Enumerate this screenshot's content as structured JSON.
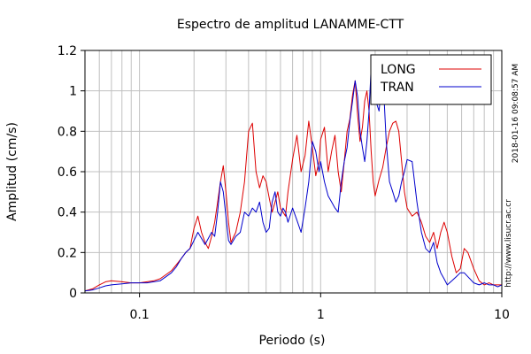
{
  "chart_data": {
    "type": "line",
    "title": "Espectro de amplitud LANAMME-CTT",
    "xlabel": "Periodo (s)",
    "ylabel": "Amplitud (cm/s)",
    "x_scale": "log",
    "xlim": [
      0.05,
      10
    ],
    "ylim": [
      0,
      1.2
    ],
    "x_ticks": [
      0.1,
      1,
      10
    ],
    "x_tick_labels": [
      "0.1",
      "1",
      "10"
    ],
    "y_ticks": [
      0,
      0.2,
      0.4,
      0.6,
      0.8,
      1,
      1.2
    ],
    "y_tick_labels": [
      "0",
      "0.2",
      "0.4",
      "0.6",
      "0.8",
      "1",
      "1.2"
    ],
    "grid": true,
    "legend_position": "top-right",
    "side_text_date": "2018-01-16 09:08:57 AM",
    "side_text_url": "http://www.lisucr.ac.cr",
    "series": [
      {
        "name": "LONG",
        "color": "#dd0000",
        "x": [
          0.05,
          0.055,
          0.06,
          0.065,
          0.07,
          0.08,
          0.09,
          0.1,
          0.11,
          0.12,
          0.13,
          0.14,
          0.15,
          0.16,
          0.17,
          0.18,
          0.19,
          0.2,
          0.21,
          0.22,
          0.23,
          0.24,
          0.25,
          0.26,
          0.27,
          0.28,
          0.29,
          0.3,
          0.31,
          0.32,
          0.34,
          0.36,
          0.38,
          0.4,
          0.42,
          0.44,
          0.46,
          0.48,
          0.5,
          0.52,
          0.54,
          0.56,
          0.58,
          0.6,
          0.62,
          0.64,
          0.66,
          0.7,
          0.74,
          0.78,
          0.82,
          0.86,
          0.9,
          0.94,
          0.98,
          1.0,
          1.05,
          1.1,
          1.15,
          1.2,
          1.25,
          1.3,
          1.35,
          1.4,
          1.45,
          1.5,
          1.55,
          1.6,
          1.65,
          1.7,
          1.75,
          1.8,
          1.85,
          1.9,
          1.95,
          2.0,
          2.1,
          2.2,
          2.3,
          2.4,
          2.5,
          2.6,
          2.7,
          2.8,
          2.9,
          3.0,
          3.2,
          3.4,
          3.6,
          3.8,
          4.0,
          4.2,
          4.4,
          4.6,
          4.8,
          5.0,
          5.3,
          5.6,
          5.9,
          6.2,
          6.5,
          7.0,
          7.5,
          8.0,
          8.5,
          9.0,
          9.5,
          10.0
        ],
        "y": [
          0.01,
          0.02,
          0.04,
          0.055,
          0.06,
          0.055,
          0.05,
          0.05,
          0.055,
          0.06,
          0.07,
          0.09,
          0.11,
          0.14,
          0.17,
          0.2,
          0.22,
          0.32,
          0.38,
          0.3,
          0.25,
          0.22,
          0.28,
          0.35,
          0.45,
          0.55,
          0.63,
          0.5,
          0.35,
          0.25,
          0.3,
          0.4,
          0.55,
          0.8,
          0.84,
          0.6,
          0.52,
          0.58,
          0.55,
          0.47,
          0.4,
          0.45,
          0.5,
          0.42,
          0.4,
          0.38,
          0.5,
          0.66,
          0.78,
          0.6,
          0.68,
          0.85,
          0.72,
          0.58,
          0.65,
          0.76,
          0.82,
          0.6,
          0.7,
          0.78,
          0.6,
          0.5,
          0.65,
          0.8,
          0.86,
          0.98,
          1.05,
          0.88,
          0.75,
          0.82,
          0.95,
          1.0,
          0.9,
          0.7,
          0.55,
          0.48,
          0.56,
          0.62,
          0.72,
          0.8,
          0.84,
          0.85,
          0.8,
          0.65,
          0.5,
          0.42,
          0.38,
          0.4,
          0.35,
          0.28,
          0.25,
          0.3,
          0.22,
          0.3,
          0.35,
          0.3,
          0.18,
          0.1,
          0.12,
          0.22,
          0.2,
          0.12,
          0.06,
          0.04,
          0.05,
          0.04,
          0.04,
          0.04
        ]
      },
      {
        "name": "TRAN",
        "color": "#0000cc",
        "x": [
          0.05,
          0.055,
          0.06,
          0.065,
          0.07,
          0.08,
          0.09,
          0.1,
          0.11,
          0.12,
          0.13,
          0.14,
          0.15,
          0.16,
          0.17,
          0.18,
          0.19,
          0.2,
          0.21,
          0.22,
          0.23,
          0.24,
          0.25,
          0.26,
          0.27,
          0.28,
          0.29,
          0.3,
          0.31,
          0.32,
          0.34,
          0.36,
          0.38,
          0.4,
          0.42,
          0.44,
          0.46,
          0.48,
          0.5,
          0.52,
          0.54,
          0.56,
          0.58,
          0.6,
          0.62,
          0.64,
          0.66,
          0.7,
          0.74,
          0.78,
          0.82,
          0.86,
          0.9,
          0.94,
          0.98,
          1.0,
          1.05,
          1.1,
          1.15,
          1.2,
          1.25,
          1.3,
          1.35,
          1.4,
          1.45,
          1.5,
          1.55,
          1.6,
          1.65,
          1.7,
          1.75,
          1.8,
          1.85,
          1.9,
          1.95,
          2.0,
          2.1,
          2.2,
          2.3,
          2.4,
          2.5,
          2.6,
          2.7,
          2.8,
          2.9,
          3.0,
          3.2,
          3.4,
          3.6,
          3.8,
          4.0,
          4.2,
          4.4,
          4.6,
          4.8,
          5.0,
          5.3,
          5.6,
          5.9,
          6.2,
          6.5,
          7.0,
          7.5,
          8.0,
          8.5,
          9.0,
          9.5,
          10.0
        ],
        "y": [
          0.01,
          0.015,
          0.025,
          0.035,
          0.04,
          0.045,
          0.05,
          0.05,
          0.05,
          0.055,
          0.06,
          0.08,
          0.1,
          0.13,
          0.17,
          0.2,
          0.22,
          0.26,
          0.3,
          0.27,
          0.24,
          0.27,
          0.3,
          0.28,
          0.4,
          0.55,
          0.5,
          0.38,
          0.26,
          0.24,
          0.28,
          0.3,
          0.4,
          0.38,
          0.42,
          0.4,
          0.45,
          0.35,
          0.3,
          0.32,
          0.45,
          0.5,
          0.4,
          0.38,
          0.42,
          0.4,
          0.35,
          0.42,
          0.36,
          0.3,
          0.42,
          0.55,
          0.75,
          0.7,
          0.6,
          0.65,
          0.55,
          0.48,
          0.45,
          0.42,
          0.4,
          0.55,
          0.65,
          0.72,
          0.85,
          0.95,
          1.05,
          0.97,
          0.8,
          0.72,
          0.65,
          0.75,
          0.9,
          1.12,
          1.05,
          0.96,
          0.9,
          1.1,
          0.75,
          0.55,
          0.5,
          0.45,
          0.48,
          0.55,
          0.6,
          0.66,
          0.65,
          0.45,
          0.3,
          0.22,
          0.2,
          0.25,
          0.15,
          0.1,
          0.07,
          0.04,
          0.06,
          0.08,
          0.1,
          0.1,
          0.08,
          0.05,
          0.04,
          0.05,
          0.04,
          0.04,
          0.03,
          0.04
        ]
      }
    ]
  }
}
